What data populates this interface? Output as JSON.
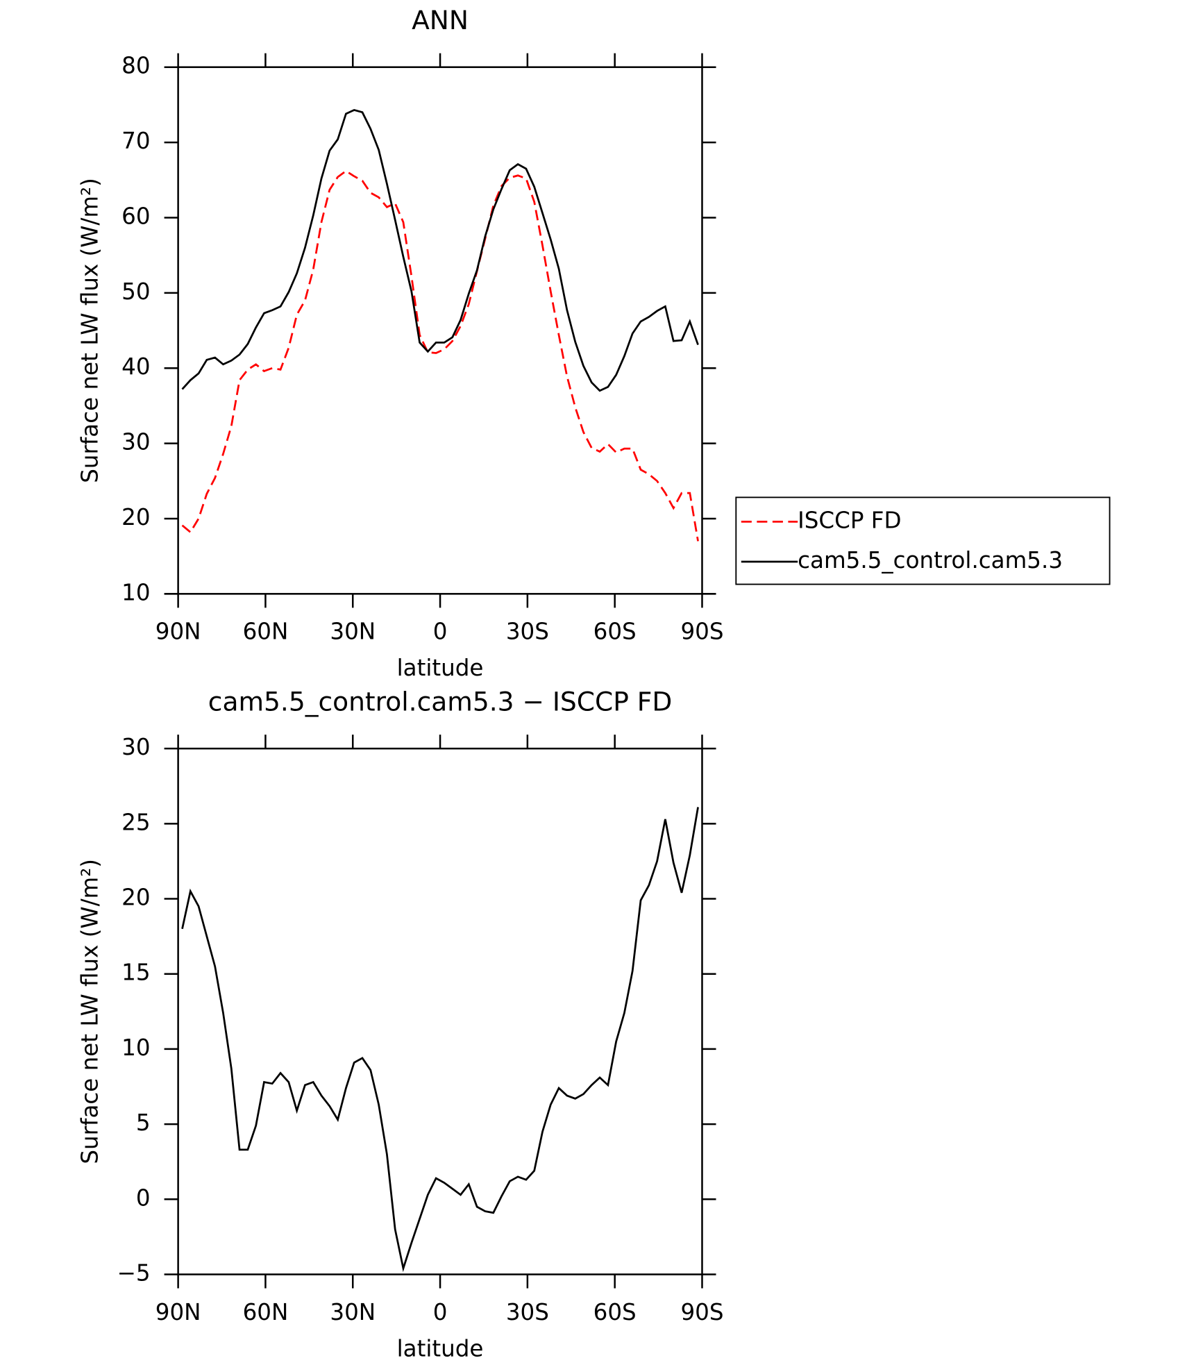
{
  "chart_data": [
    {
      "type": "line",
      "title": "ANN",
      "x_label": "latitude",
      "y_label": "Surface net LW flux (W/m²)",
      "x": [
        88.59,
        85.78,
        82.97,
        80.16,
        77.34,
        74.53,
        71.72,
        68.91,
        66.09,
        63.28,
        60.47,
        57.66,
        54.84,
        52.03,
        49.22,
        46.41,
        43.59,
        40.78,
        37.97,
        35.16,
        32.34,
        29.53,
        26.72,
        23.91,
        21.09,
        18.28,
        15.47,
        12.66,
        9.84,
        7.03,
        4.22,
        1.41,
        -1.41,
        -4.22,
        -7.03,
        -9.84,
        -12.66,
        -15.47,
        -18.28,
        -21.09,
        -23.91,
        -26.72,
        -29.53,
        -32.34,
        -35.16,
        -37.97,
        -40.78,
        -43.59,
        -46.41,
        -49.22,
        -52.03,
        -54.84,
        -57.66,
        -60.47,
        -63.28,
        -66.09,
        -68.91,
        -71.72,
        -74.53,
        -77.34,
        -80.16,
        -82.97,
        -85.78,
        -88.59
      ],
      "series": [
        {
          "name": "ISCCP FD",
          "color": "#ff0000",
          "line_style": "dashed",
          "values": [
            19.1,
            18.2,
            20,
            23.3,
            25.4,
            28.6,
            32.3,
            38.4,
            39.8,
            40.5,
            39.6,
            40,
            39.8,
            42.7,
            47.1,
            49,
            53.1,
            59.4,
            63.7,
            65.4,
            66.2,
            65.5,
            64.9,
            63.3,
            62.7,
            61.4,
            61.9,
            59.4,
            52.2,
            44.4,
            42.1,
            42,
            42.5,
            43.6,
            45.6,
            48.5,
            52.9,
            57.2,
            61.6,
            64.2,
            65.3,
            65.6,
            65.2,
            62.1,
            56.3,
            50.2,
            44.4,
            38.9,
            34.8,
            31.5,
            29.4,
            28.9,
            29.9,
            28.8,
            29.3,
            29.3,
            26.5,
            25.9,
            25,
            23.4,
            21.4,
            23.4,
            23.4,
            17
          ]
        },
        {
          "name": "cam5.5_control.cam5.3",
          "color": "#000000",
          "line_style": "solid",
          "values": [
            37.2,
            38.4,
            39.3,
            41.1,
            41.4,
            40.5,
            41,
            41.8,
            43.2,
            45.4,
            47.3,
            47.7,
            48.2,
            50.1,
            52.6,
            56,
            60.3,
            65.2,
            68.9,
            70.4,
            73.8,
            74.3,
            74,
            71.8,
            69,
            64.5,
            59.7,
            54.8,
            50.2,
            43.4,
            42.2,
            43.4,
            43.4,
            44.1,
            46.4,
            49.9,
            53,
            57.5,
            61.1,
            63.8,
            66.3,
            67.1,
            66.5,
            64.1,
            60.6,
            57.1,
            53.2,
            47.7,
            43.5,
            40.3,
            38.1,
            37,
            37.5,
            39.1,
            41.6,
            44.6,
            46.2,
            46.8,
            47.6,
            48.2,
            43.6,
            43.7,
            46.2,
            43.1
          ]
        }
      ],
      "xlim": [
        90,
        -90
      ],
      "xticks": [
        {
          "value": 90,
          "label": "90N"
        },
        {
          "value": 60,
          "label": "60N"
        },
        {
          "value": 30,
          "label": "30N"
        },
        0,
        {
          "value": -30,
          "label": "30S"
        },
        {
          "value": -60,
          "label": "60S"
        },
        {
          "value": -90,
          "label": "90S"
        }
      ],
      "ylim": [
        10,
        80
      ],
      "yticks": [
        10,
        20,
        30,
        40,
        50,
        60,
        70,
        80
      ],
      "grid": false,
      "legend": "outside right"
    },
    {
      "type": "line",
      "title": "cam5.5_control.cam5.3 − ISCCP FD",
      "x_label": "latitude",
      "y_label": "Surface net LW flux (W/m²)",
      "x": [
        88.59,
        85.78,
        82.97,
        80.16,
        77.34,
        74.53,
        71.72,
        68.91,
        66.09,
        63.28,
        60.47,
        57.66,
        54.84,
        52.03,
        49.22,
        46.41,
        43.59,
        40.78,
        37.97,
        35.16,
        32.34,
        29.53,
        26.72,
        23.91,
        21.09,
        18.28,
        15.47,
        12.66,
        9.84,
        7.03,
        4.22,
        1.41,
        -1.41,
        -4.22,
        -7.03,
        -9.84,
        -12.66,
        -15.47,
        -18.28,
        -21.09,
        -23.91,
        -26.72,
        -29.53,
        -32.34,
        -35.16,
        -37.97,
        -40.78,
        -43.59,
        -46.41,
        -49.22,
        -52.03,
        -54.84,
        -57.66,
        -60.47,
        -63.28,
        -66.09,
        -68.91,
        -71.72,
        -74.53,
        -77.34,
        -80.16,
        -82.97,
        -85.78,
        -88.59
      ],
      "series": [
        {
          "color": "#000000",
          "line_style": "solid",
          "values": [
            18,
            20.5,
            19.5,
            17.5,
            15.5,
            12.4,
            8.7,
            3.3,
            3.3,
            4.9,
            7.8,
            7.7,
            8.4,
            7.8,
            5.9,
            7.6,
            7.8,
            6.9,
            6.2,
            5.3,
            7.4,
            9.1,
            9.4,
            8.6,
            6.3,
            3,
            -2,
            -4.6,
            -2.9,
            -1.3,
            0.3,
            1.4,
            1.1,
            0.7,
            0.3,
            1,
            -0.5,
            -0.8,
            -0.9,
            0.2,
            1.2,
            1.5,
            1.3,
            1.9,
            4.5,
            6.3,
            7.4,
            6.9,
            6.7,
            7,
            7.6,
            8.1,
            7.6,
            10.5,
            12.4,
            15.2,
            19.9,
            20.9,
            22.5,
            25.3,
            22.4,
            20.4,
            22.9,
            26.1
          ]
        }
      ],
      "xlim": [
        90,
        -90
      ],
      "xticks": [
        {
          "value": 90,
          "label": "90N"
        },
        {
          "value": 60,
          "label": "60N"
        },
        {
          "value": 30,
          "label": "30N"
        },
        0,
        {
          "value": -30,
          "label": "30S"
        },
        {
          "value": -60,
          "label": "60S"
        },
        {
          "value": -90,
          "label": "90S"
        }
      ],
      "ylim": [
        -5,
        30
      ],
      "yticks": [
        {
          "value": -5,
          "label": "−5"
        },
        0,
        5,
        10,
        15,
        20,
        25,
        30
      ],
      "grid": false
    }
  ]
}
